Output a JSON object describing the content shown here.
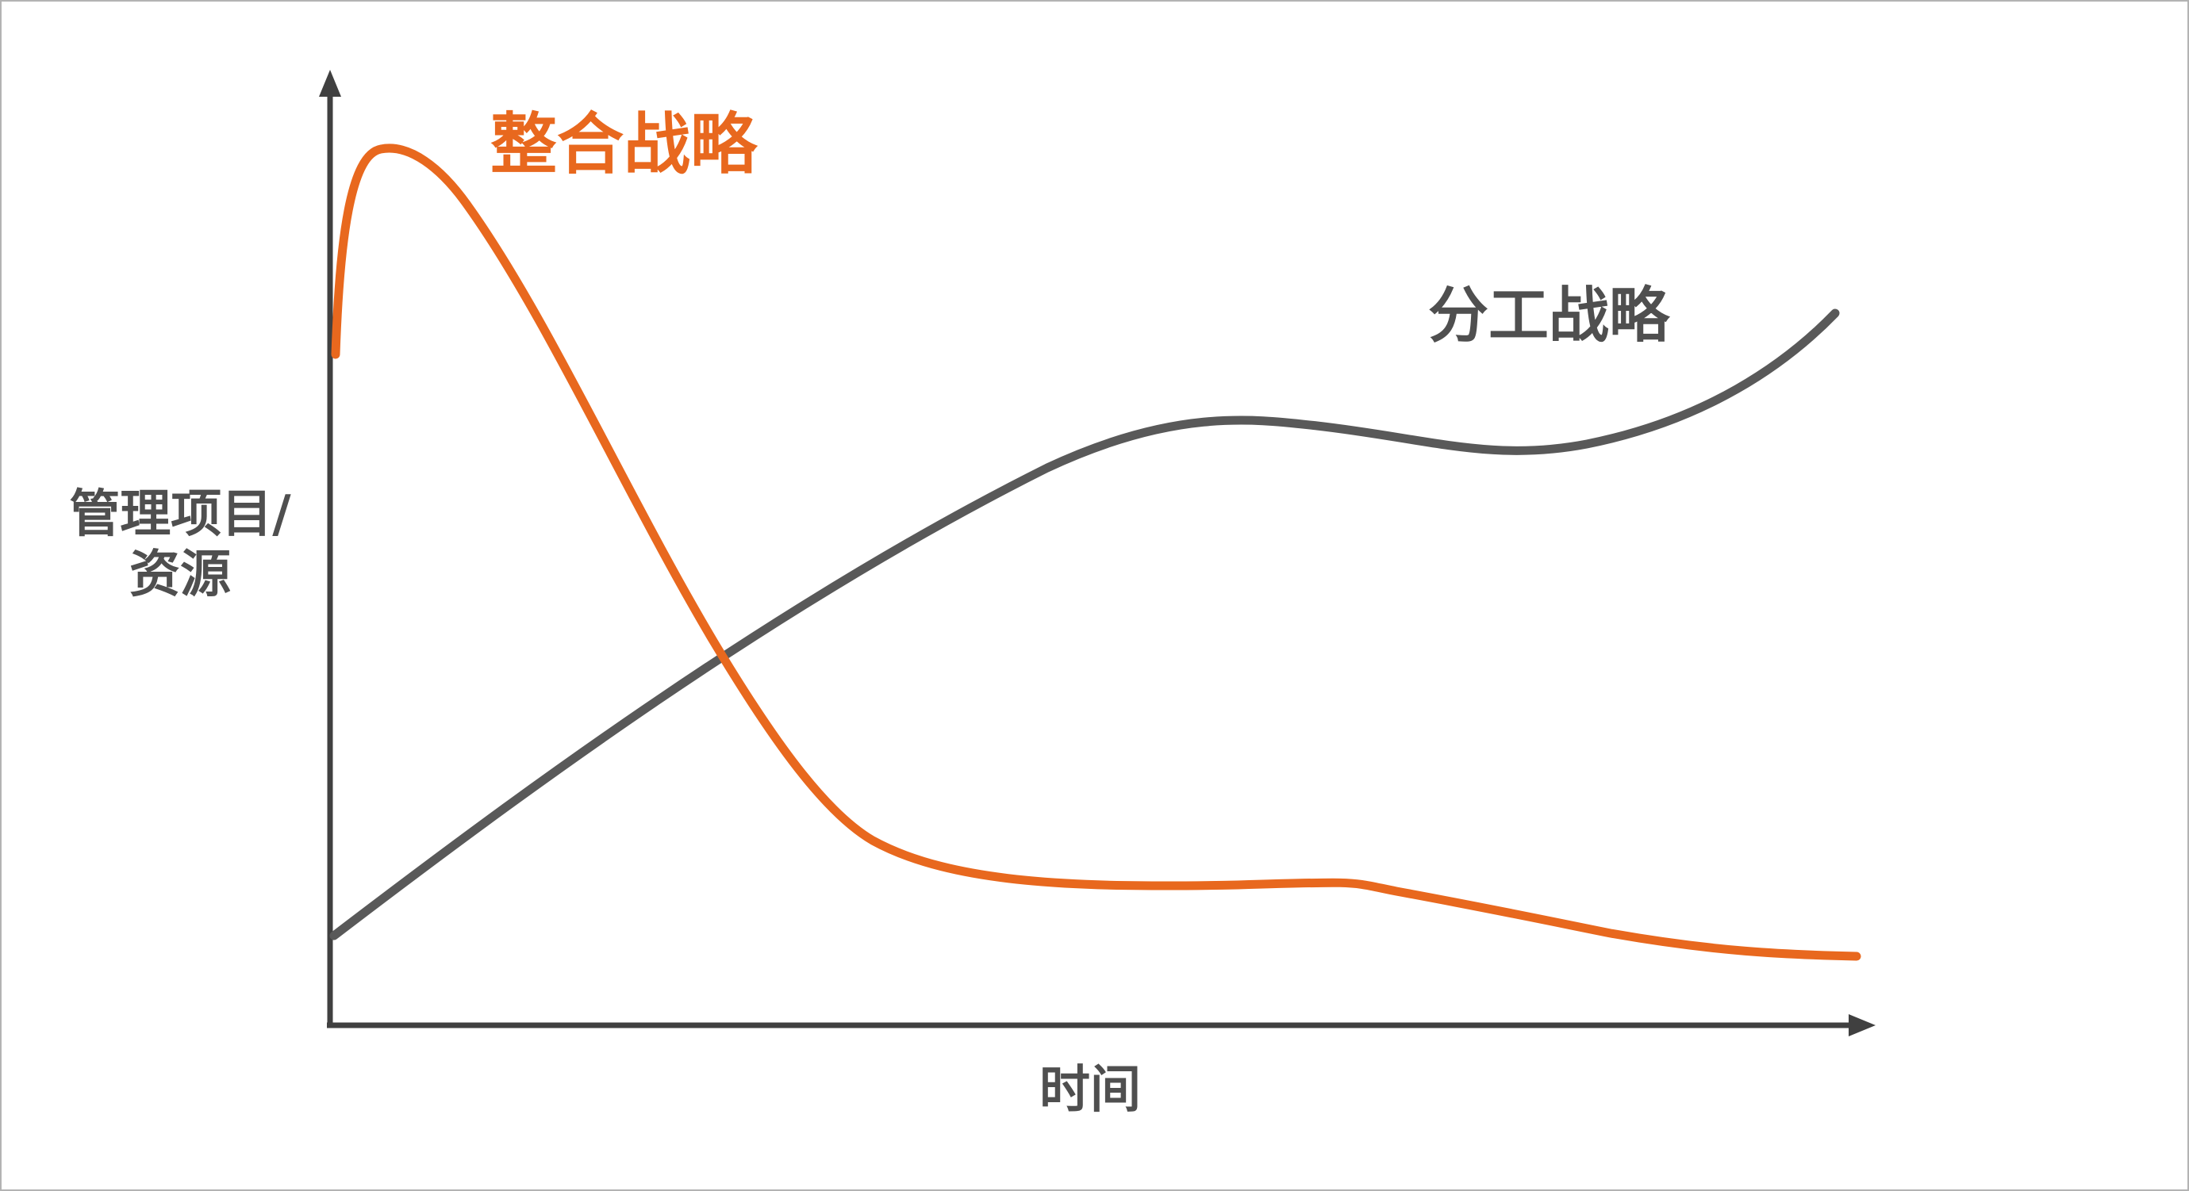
{
  "labels": {
    "integration_strategy": "整合战略",
    "division_strategy": "分工战略",
    "y_axis_line1": "管理项目/",
    "y_axis_line2": "资源",
    "x_axis": "时间"
  },
  "colors": {
    "integration": "#e8681e",
    "division": "#595959",
    "axis": "#404040",
    "label_dark": "#4f4f4f",
    "frame_border": "#b3b3b3"
  }
}
